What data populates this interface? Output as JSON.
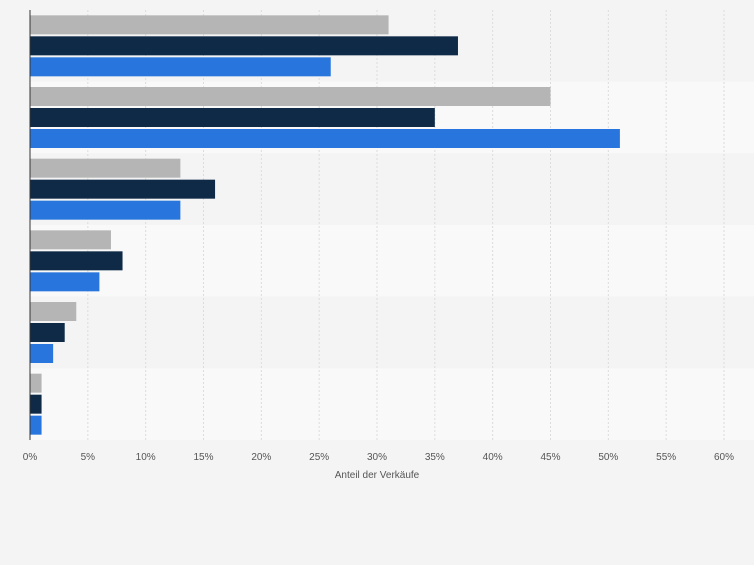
{
  "chart_data": {
    "type": "bar",
    "orientation": "horizontal",
    "categories": [
      "",
      "",
      "",
      "",
      "",
      ""
    ],
    "series": [
      {
        "color": "#b5b5b5",
        "values": [
          31,
          45,
          13,
          7,
          4,
          1
        ]
      },
      {
        "color": "#0e2a47",
        "values": [
          37,
          35,
          16,
          8,
          3,
          1
        ]
      },
      {
        "color": "#2876dd",
        "values": [
          26,
          51,
          13,
          6,
          2,
          1
        ]
      }
    ],
    "xlabel": "Anteil der Verkäufe",
    "xlim": [
      0,
      60
    ],
    "xticks": [
      0,
      5,
      10,
      15,
      20,
      25,
      30,
      35,
      40,
      45,
      50,
      55,
      60
    ],
    "xtick_labels": [
      "0%",
      "5%",
      "10%",
      "15%",
      "20%",
      "25%",
      "30%",
      "35%",
      "40%",
      "45%",
      "50%",
      "55%",
      "60%"
    ],
    "grid": true,
    "legend": "none"
  }
}
